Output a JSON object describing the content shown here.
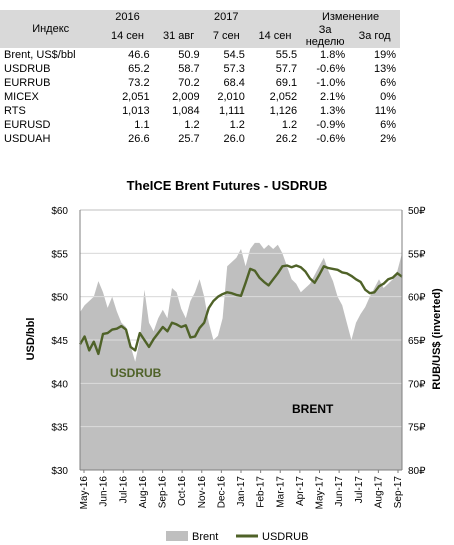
{
  "table": {
    "index_header": "Индекс",
    "year_2016": "2016",
    "year_2017": "2017",
    "change_header": "Изменение",
    "columns": [
      "14 сен",
      "31 авг",
      "7 сен",
      "14 сен",
      "За неделю",
      "За год"
    ],
    "rows": [
      {
        "name": "Brent, US$/bbl",
        "values": [
          "46.6",
          "50.9",
          "54.5",
          "55.5",
          "1.8%",
          "19%"
        ]
      },
      {
        "name": "USDRUB",
        "values": [
          "65.2",
          "58.7",
          "57.3",
          "57.7",
          "-0.6%",
          "13%"
        ]
      },
      {
        "name": "EURRUB",
        "values": [
          "73.2",
          "70.2",
          "68.4",
          "69.1",
          "-1.0%",
          "6%"
        ]
      },
      {
        "name": "MICEX",
        "values": [
          "2,051",
          "2,009",
          "2,010",
          "2,052",
          "2.1%",
          "0%"
        ]
      },
      {
        "name": "RTS",
        "values": [
          "1,013",
          "1,084",
          "1,111",
          "1,126",
          "1.3%",
          "11%"
        ]
      },
      {
        "name": "EURUSD",
        "values": [
          "1.1",
          "1.2",
          "1.2",
          "1.2",
          "-0.9%",
          "6%"
        ]
      },
      {
        "name": "USDUAH",
        "values": [
          "26.6",
          "25.7",
          "26.0",
          "26.2",
          "-0.6%",
          "2%"
        ]
      }
    ]
  },
  "chart_data": {
    "type": "area",
    "title": "TheICE Brent Futures - USDRUB",
    "ylabel": "USD/bbl",
    "y2label": "RUB/US$ (inverted)",
    "ylim": [
      30,
      60
    ],
    "y2lim": [
      80,
      50
    ],
    "y2_inverted": true,
    "yticks": [
      "$30",
      "$35",
      "$40",
      "$45",
      "$50",
      "$55",
      "$60"
    ],
    "y2ticks": [
      "80₽",
      "75₽",
      "70₽",
      "65₽",
      "60₽",
      "55₽",
      "50₽"
    ],
    "xticks": [
      "May-16",
      "Jun-16",
      "Jul-16",
      "Aug-16",
      "Sep-16",
      "Oct-16",
      "Nov-16",
      "Dec-16",
      "Jan-17",
      "Feb-17",
      "Mar-17",
      "Apr-17",
      "May-17",
      "Jun-17",
      "Jul-17",
      "Aug-17",
      "Sep-17"
    ],
    "grid": true,
    "legend_position": "bottom",
    "annotations": [
      "USDRUB",
      "BRENT"
    ],
    "series": [
      {
        "name": "Brent",
        "axis": "left",
        "style": "area",
        "color": "#bfbfbf",
        "values": [
          48.2,
          49.0,
          49.5,
          50.0,
          51.8,
          50.5,
          48.7,
          50.0,
          48.3,
          47.0,
          46.5,
          44.3,
          42.5,
          45.0,
          50.8,
          47.0,
          46.0,
          47.5,
          48.5,
          47.5,
          51.0,
          50.5,
          48.6,
          47.5,
          49.5,
          50.5,
          52.0,
          50.0,
          47.0,
          45.0,
          45.5,
          47.5,
          53.5,
          54.0,
          54.5,
          55.5,
          53.5,
          55.5,
          56.2,
          56.2,
          55.5,
          56.0,
          55.5,
          56.0,
          55.0,
          53.5,
          52.0,
          51.5,
          50.5,
          51.0,
          51.5,
          52.5,
          53.5,
          54.5,
          53.0,
          51.8,
          50.0,
          49.0,
          47.0,
          45.0,
          47.0,
          48.0,
          48.8,
          50.0,
          51.0,
          52.0,
          51.0,
          51.5,
          52.0,
          53.0,
          55.0
        ]
      },
      {
        "name": "USDRUB",
        "axis": "right",
        "style": "line",
        "color": "#4f6228",
        "values": [
          65.5,
          64.6,
          66.2,
          65.2,
          66.6,
          64.3,
          64.2,
          63.8,
          63.7,
          63.4,
          63.8,
          65.8,
          66.2,
          64.2,
          65.0,
          65.8,
          64.9,
          64.2,
          63.5,
          64.0,
          63.0,
          63.2,
          63.5,
          63.3,
          64.7,
          64.6,
          63.6,
          63.0,
          61.3,
          60.5,
          60.0,
          59.7,
          59.5,
          59.6,
          59.8,
          59.9,
          58.4,
          56.8,
          57.0,
          57.8,
          58.3,
          58.7,
          58.0,
          57.3,
          56.5,
          56.4,
          56.6,
          56.4,
          56.6,
          57.1,
          57.9,
          58.4,
          57.5,
          56.5,
          56.7,
          56.8,
          56.9,
          57.2,
          57.3,
          57.6,
          58.0,
          58.3,
          59.2,
          59.6,
          59.5,
          58.8,
          58.5,
          58.0,
          57.8,
          57.3,
          57.7
        ]
      }
    ]
  }
}
